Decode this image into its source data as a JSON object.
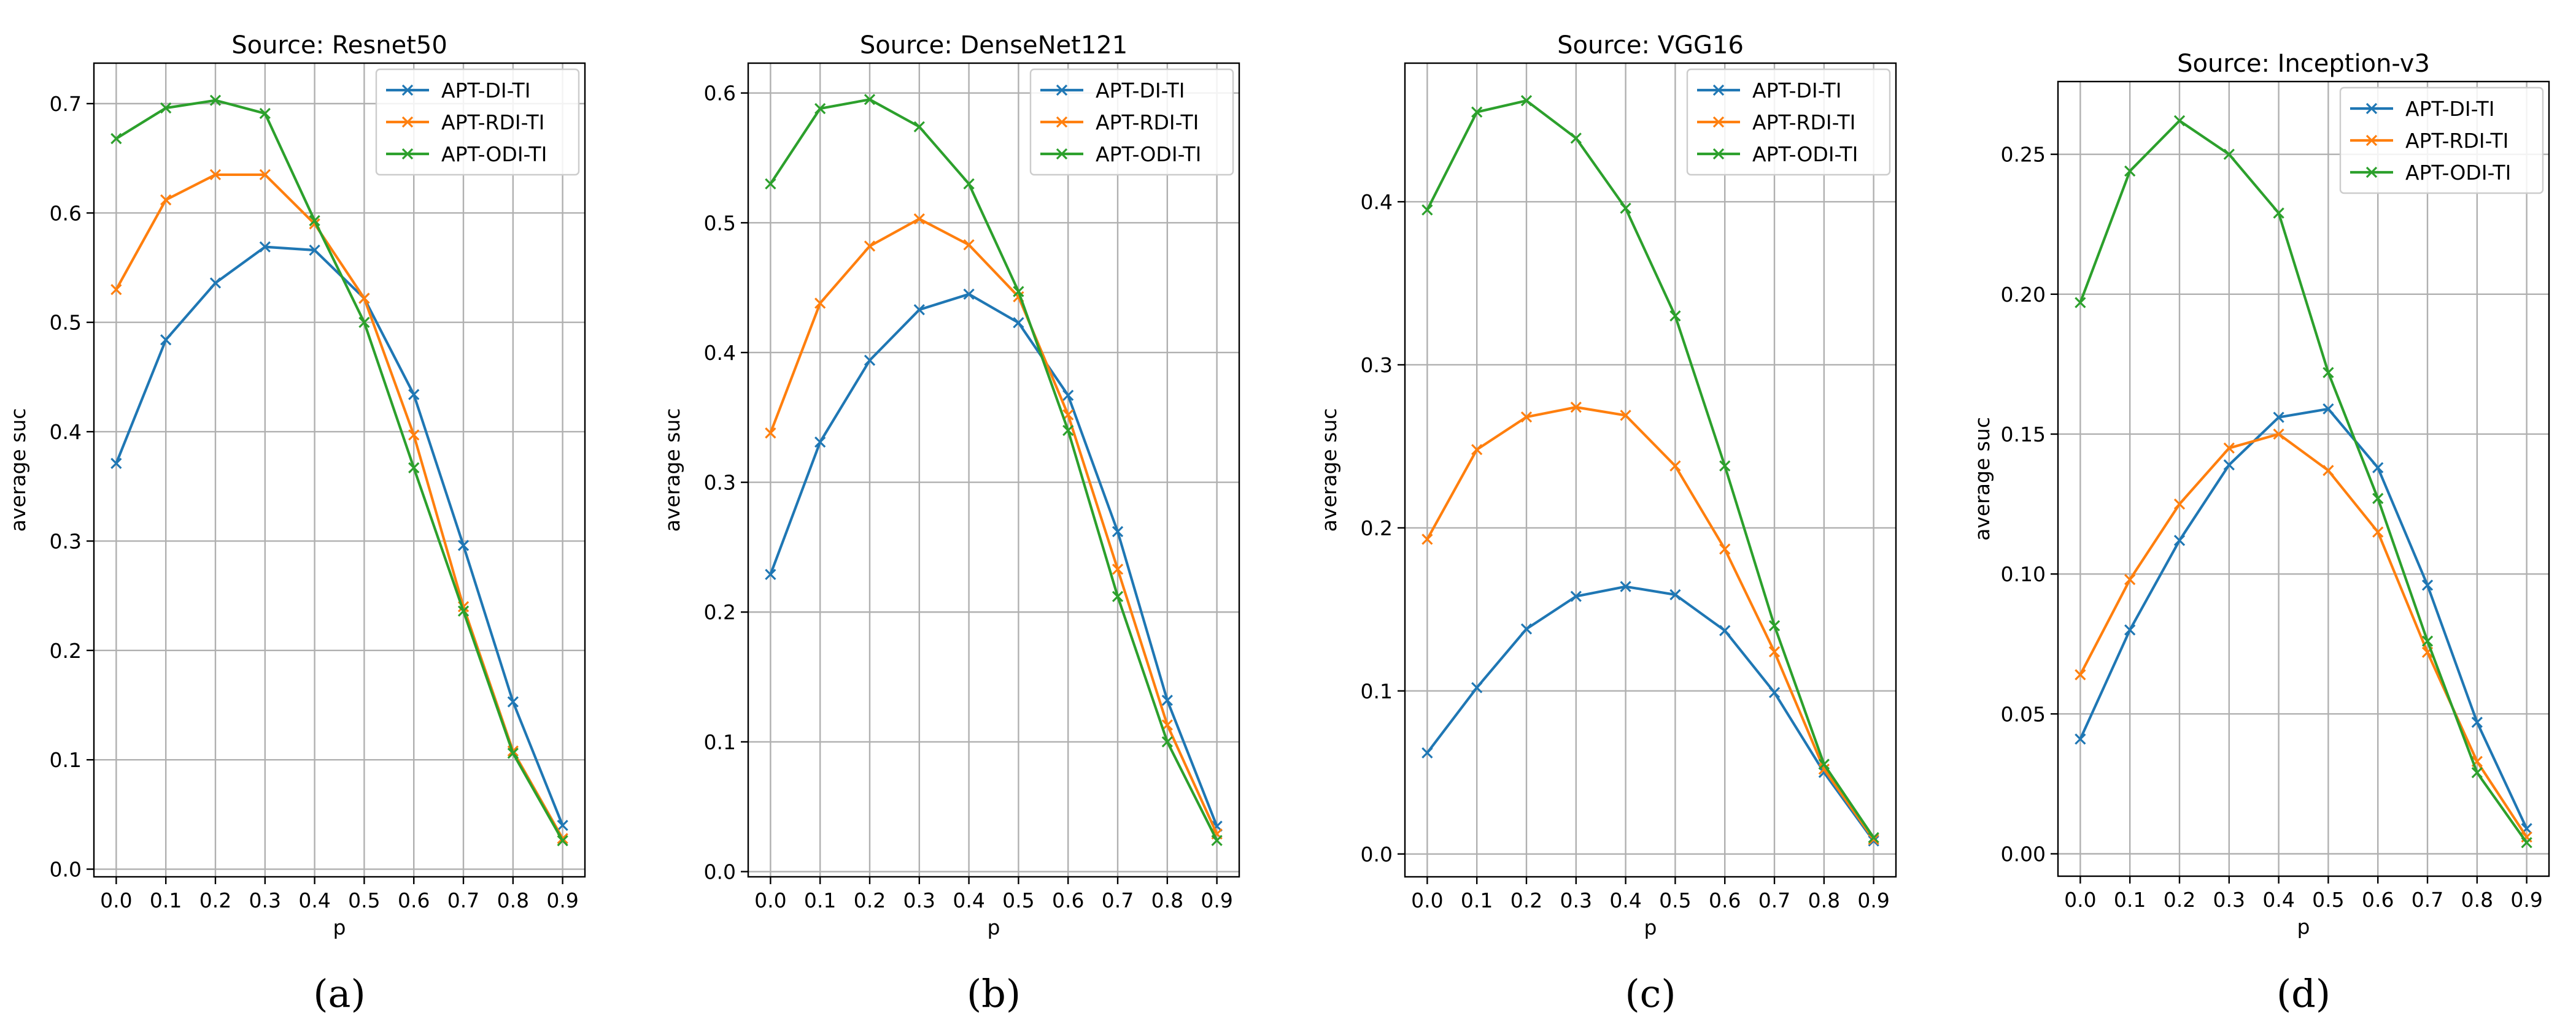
{
  "chart_data": [
    {
      "type": "line",
      "title": "Source: Resnet50",
      "caption": "(a)",
      "xlabel": "p",
      "ylabel": "average suc",
      "categories": [
        "0.0",
        "0.1",
        "0.2",
        "0.3",
        "0.4",
        "0.5",
        "0.6",
        "0.7",
        "0.8",
        "0.9"
      ],
      "x": [
        0.0,
        0.1,
        0.2,
        0.3,
        0.4,
        0.5,
        0.6,
        0.7,
        0.8,
        0.9
      ],
      "xlim": [
        -0.045,
        0.945
      ],
      "ylim": [
        -0.007,
        0.737
      ],
      "yticks": [
        0.0,
        0.1,
        0.2,
        0.3,
        0.4,
        0.5,
        0.6,
        0.7
      ],
      "ytick_labels": [
        "0.0",
        "0.1",
        "0.2",
        "0.3",
        "0.4",
        "0.5",
        "0.6",
        "0.7"
      ],
      "grid": true,
      "legend_position": "top-right",
      "series": [
        {
          "name": "APT-DI-TI",
          "color": "#1f77b4",
          "values": [
            0.371,
            0.484,
            0.536,
            0.569,
            0.566,
            0.522,
            0.434,
            0.296,
            0.153,
            0.04
          ]
        },
        {
          "name": "APT-RDI-TI",
          "color": "#ff7f0e",
          "values": [
            0.53,
            0.612,
            0.635,
            0.635,
            0.59,
            0.522,
            0.397,
            0.24,
            0.108,
            0.028
          ]
        },
        {
          "name": "APT-ODI-TI",
          "color": "#2ca02c",
          "values": [
            0.668,
            0.696,
            0.703,
            0.691,
            0.593,
            0.5,
            0.367,
            0.236,
            0.106,
            0.026
          ]
        }
      ]
    },
    {
      "type": "line",
      "title": "Source: DenseNet121",
      "caption": "(b)",
      "xlabel": "p",
      "ylabel": "average suc",
      "categories": [
        "0.0",
        "0.1",
        "0.2",
        "0.3",
        "0.4",
        "0.5",
        "0.6",
        "0.7",
        "0.8",
        "0.9"
      ],
      "x": [
        0.0,
        0.1,
        0.2,
        0.3,
        0.4,
        0.5,
        0.6,
        0.7,
        0.8,
        0.9
      ],
      "xlim": [
        -0.045,
        0.945
      ],
      "ylim": [
        -0.004,
        0.623
      ],
      "yticks": [
        0.0,
        0.1,
        0.2,
        0.3,
        0.4,
        0.5,
        0.6
      ],
      "ytick_labels": [
        "0.0",
        "0.1",
        "0.2",
        "0.3",
        "0.4",
        "0.5",
        "0.6"
      ],
      "grid": true,
      "legend_position": "top-right",
      "series": [
        {
          "name": "APT-DI-TI",
          "color": "#1f77b4",
          "values": [
            0.229,
            0.331,
            0.394,
            0.433,
            0.445,
            0.423,
            0.367,
            0.262,
            0.132,
            0.035
          ]
        },
        {
          "name": "APT-RDI-TI",
          "color": "#ff7f0e",
          "values": [
            0.338,
            0.438,
            0.482,
            0.503,
            0.483,
            0.443,
            0.352,
            0.233,
            0.113,
            0.029
          ]
        },
        {
          "name": "APT-ODI-TI",
          "color": "#2ca02c",
          "values": [
            0.53,
            0.588,
            0.595,
            0.574,
            0.53,
            0.447,
            0.34,
            0.212,
            0.1,
            0.024
          ]
        }
      ]
    },
    {
      "type": "line",
      "title": "Source: VGG16",
      "caption": "(c)",
      "xlabel": "p",
      "ylabel": "average suc",
      "categories": [
        "0.0",
        "0.1",
        "0.2",
        "0.3",
        "0.4",
        "0.5",
        "0.6",
        "0.7",
        "0.8",
        "0.9"
      ],
      "x": [
        0.0,
        0.1,
        0.2,
        0.3,
        0.4,
        0.5,
        0.6,
        0.7,
        0.8,
        0.9
      ],
      "xlim": [
        -0.045,
        0.945
      ],
      "ylim": [
        -0.014,
        0.485
      ],
      "yticks": [
        0.0,
        0.1,
        0.2,
        0.3,
        0.4
      ],
      "ytick_labels": [
        "0.0",
        "0.1",
        "0.2",
        "0.3",
        "0.4"
      ],
      "grid": true,
      "legend_position": "top-right",
      "series": [
        {
          "name": "APT-DI-TI",
          "color": "#1f77b4",
          "values": [
            0.062,
            0.102,
            0.138,
            0.158,
            0.164,
            0.159,
            0.137,
            0.099,
            0.05,
            0.008
          ]
        },
        {
          "name": "APT-RDI-TI",
          "color": "#ff7f0e",
          "values": [
            0.193,
            0.248,
            0.268,
            0.274,
            0.269,
            0.238,
            0.187,
            0.124,
            0.052,
            0.009
          ]
        },
        {
          "name": "APT-ODI-TI",
          "color": "#2ca02c",
          "values": [
            0.395,
            0.455,
            0.462,
            0.439,
            0.396,
            0.33,
            0.238,
            0.14,
            0.055,
            0.01
          ]
        }
      ]
    },
    {
      "type": "line",
      "title": "Source: Inception-v3",
      "caption": "(d)",
      "xlabel": "p",
      "ylabel": "average suc",
      "categories": [
        "0.0",
        "0.1",
        "0.2",
        "0.3",
        "0.4",
        "0.5",
        "0.6",
        "0.7",
        "0.8",
        "0.9"
      ],
      "x": [
        0.0,
        0.1,
        0.2,
        0.3,
        0.4,
        0.5,
        0.6,
        0.7,
        0.8,
        0.9
      ],
      "xlim": [
        -0.045,
        0.945
      ],
      "ylim": [
        -0.008,
        0.276
      ],
      "yticks": [
        0.0,
        0.05,
        0.1,
        0.15,
        0.2,
        0.25
      ],
      "ytick_labels": [
        "0.00",
        "0.05",
        "0.10",
        "0.15",
        "0.20",
        "0.25"
      ],
      "grid": true,
      "legend_position": "top-right",
      "series": [
        {
          "name": "APT-DI-TI",
          "color": "#1f77b4",
          "values": [
            0.041,
            0.08,
            0.112,
            0.139,
            0.156,
            0.159,
            0.138,
            0.096,
            0.047,
            0.009
          ]
        },
        {
          "name": "APT-RDI-TI",
          "color": "#ff7f0e",
          "values": [
            0.064,
            0.098,
            0.125,
            0.145,
            0.15,
            0.137,
            0.115,
            0.072,
            0.033,
            0.006
          ]
        },
        {
          "name": "APT-ODI-TI",
          "color": "#2ca02c",
          "values": [
            0.197,
            0.244,
            0.262,
            0.25,
            0.229,
            0.172,
            0.127,
            0.076,
            0.029,
            0.004
          ]
        }
      ]
    }
  ]
}
